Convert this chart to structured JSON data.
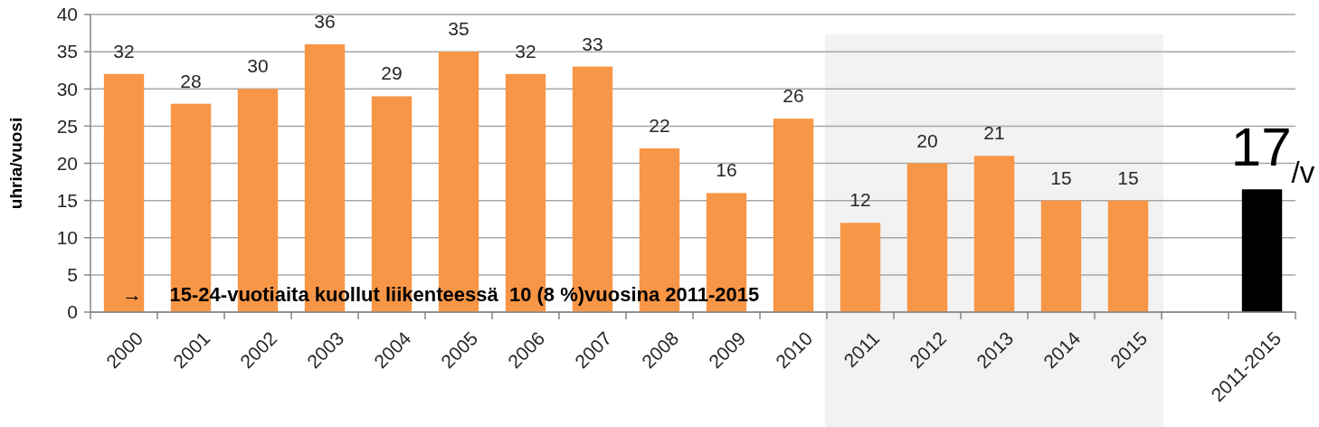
{
  "chart_data": {
    "type": "bar",
    "ylabel": "uhria/vuosi",
    "categories": [
      "2000",
      "2001",
      "2002",
      "2003",
      "2004",
      "2005",
      "2006",
      "2007",
      "2008",
      "2009",
      "2010",
      "2011",
      "2012",
      "2013",
      "2014",
      "2015",
      null,
      "2011-2015"
    ],
    "values": [
      32,
      28,
      30,
      36,
      29,
      35,
      32,
      33,
      22,
      16,
      26,
      12,
      20,
      21,
      15,
      15,
      null,
      16.5
    ],
    "colors": [
      "#f79646",
      "#f79646",
      "#f79646",
      "#f79646",
      "#f79646",
      "#f79646",
      "#f79646",
      "#f79646",
      "#f79646",
      "#f79646",
      "#f79646",
      "#f79646",
      "#f79646",
      "#f79646",
      "#f79646",
      "#f79646",
      null,
      "#000000"
    ],
    "value_labels": [
      "32",
      "28",
      "30",
      "36",
      "29",
      "35",
      "32",
      "33",
      "22",
      "16",
      "26",
      "12",
      "20",
      "21",
      "15",
      "15",
      null,
      "17$_{/v}$"
    ],
    "ylim": [
      0,
      40
    ],
    "yticks": [
      0,
      5,
      10,
      15,
      20,
      25,
      30,
      35,
      40
    ],
    "grid": "y",
    "bands": [
      {
        "axis": "x",
        "from": "2011",
        "to": "2015",
        "color": "#f2f2f2"
      }
    ],
    "annotations": [
      "→     15-24-vuotiaita kuollut liikenteessä  10 (8 %)vuosina 2011-2015"
    ]
  }
}
